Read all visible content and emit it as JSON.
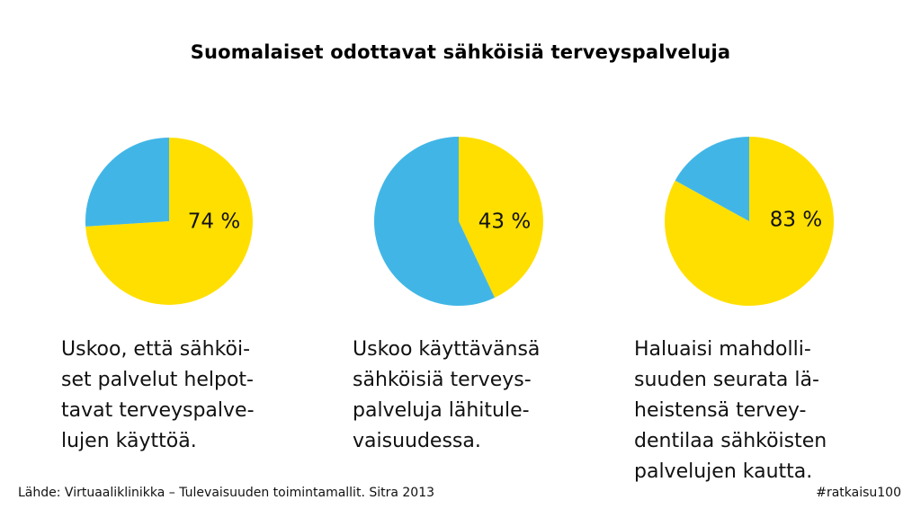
{
  "title": "Suomalaiset odottavat sähköisiä terveyspalveluja",
  "colors": {
    "primary": "#FFDF00",
    "secondary": "#41B6E6",
    "text": "#111111"
  },
  "chart_data": [
    {
      "type": "pie",
      "slices": [
        {
          "value": 74,
          "color": "#FFDF00"
        },
        {
          "value": 26,
          "color": "#41B6E6"
        }
      ],
      "label": "74 %",
      "caption_lines": [
        "Uskoo, että sähköi-",
        "set palvelut helpot-",
        "tavat terveyspalve-",
        "lujen käyttöä."
      ]
    },
    {
      "type": "pie",
      "slices": [
        {
          "value": 43,
          "color": "#FFDF00"
        },
        {
          "value": 57,
          "color": "#41B6E6"
        }
      ],
      "label": "43 %",
      "caption_lines": [
        "Uskoo käyttävänsä",
        "sähköisiä terveys-",
        "palveluja lähitule-",
        "vaisuudessa."
      ]
    },
    {
      "type": "pie",
      "slices": [
        {
          "value": 83,
          "color": "#FFDF00"
        },
        {
          "value": 17,
          "color": "#41B6E6"
        }
      ],
      "label": "83 %",
      "caption_lines": [
        "Haluaisi mahdolli-",
        "suuden seurata lä-",
        "heistensä tervey-",
        "dentilaa sähköisten",
        "palvelujen kautta."
      ]
    }
  ],
  "footer": {
    "source": "Lähde: Virtuaaliklinikka – Tulevaisuuden toimintamallit. Sitra 2013",
    "hashtag": "#ratkaisu100"
  }
}
